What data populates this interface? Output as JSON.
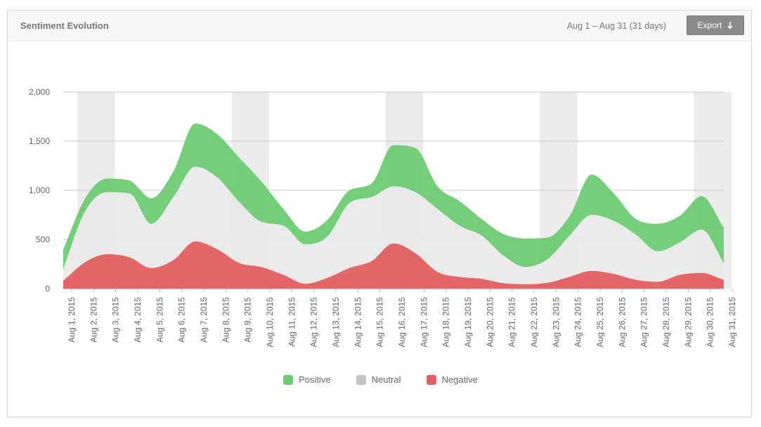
{
  "header": {
    "title": "Sentiment Evolution",
    "date_range": "Aug 1 – Aug 31 (31 days)",
    "export_label": "Export"
  },
  "colors": {
    "positive": "#6ecb72",
    "neutral": "#e8e8e8",
    "negative": "#e35f5f",
    "weekend_band": "#ebebeb",
    "grid": "#c8c8c8"
  },
  "chart_data": {
    "type": "area",
    "stacked": true,
    "x": [
      "Aug 1, 2015",
      "Aug 2, 2015",
      "Aug 3, 2015",
      "Aug 4, 2015",
      "Aug 5, 2015",
      "Aug 6, 2015",
      "Aug 7, 2015",
      "Aug 8, 2015",
      "Aug 9, 2015",
      "Aug 10, 2015",
      "Aug 11, 2015",
      "Aug 12, 2015",
      "Aug 13, 2015",
      "Aug 14, 2015",
      "Aug 15, 2015",
      "Aug 16, 2015",
      "Aug 17, 2015",
      "Aug 18, 2015",
      "Aug 19, 2015",
      "Aug 20, 2015",
      "Aug 21, 2015",
      "Aug 22, 2015",
      "Aug 23, 2015",
      "Aug 24, 2015",
      "Aug 25, 2015",
      "Aug 26, 2015",
      "Aug 27, 2015",
      "Aug 28, 2015",
      "Aug 29, 2015",
      "Aug 30, 2015",
      "Aug 31, 2015"
    ],
    "series": [
      {
        "name": "Negative",
        "values": [
          80,
          270,
          350,
          320,
          210,
          290,
          480,
          400,
          260,
          220,
          140,
          50,
          110,
          210,
          280,
          460,
          360,
          170,
          120,
          100,
          55,
          45,
          60,
          120,
          180,
          150,
          90,
          70,
          140,
          160,
          90
        ]
      },
      {
        "name": "Neutral",
        "values": [
          120,
          520,
          630,
          650,
          450,
          640,
          760,
          730,
          620,
          460,
          500,
          400,
          420,
          660,
          650,
          580,
          620,
          640,
          520,
          440,
          280,
          175,
          240,
          420,
          570,
          540,
          460,
          310,
          330,
          440,
          170
        ]
      },
      {
        "name": "Positive",
        "values": [
          200,
          130,
          140,
          130,
          260,
          260,
          440,
          440,
          450,
          410,
          170,
          130,
          170,
          130,
          140,
          420,
          450,
          230,
          250,
          170,
          220,
          290,
          220,
          200,
          410,
          280,
          160,
          280,
          270,
          340,
          360
        ]
      }
    ],
    "weekend_bands": [
      [
        "Aug 2, 2015",
        "Aug 3, 2015"
      ],
      [
        "Aug 9, 2015",
        "Aug 10, 2015"
      ],
      [
        "Aug 16, 2015",
        "Aug 17, 2015"
      ],
      [
        "Aug 23, 2015",
        "Aug 24, 2015"
      ],
      [
        "Aug 30, 2015",
        "Aug 31, 2015"
      ]
    ],
    "y_ticks": [
      "0",
      "500",
      "1,000",
      "1,500",
      "2,000"
    ],
    "ylim": [
      0,
      2000
    ],
    "grid": true,
    "legend_position": "bottom-center",
    "legend": [
      "Positive",
      "Neutral",
      "Negative"
    ]
  }
}
